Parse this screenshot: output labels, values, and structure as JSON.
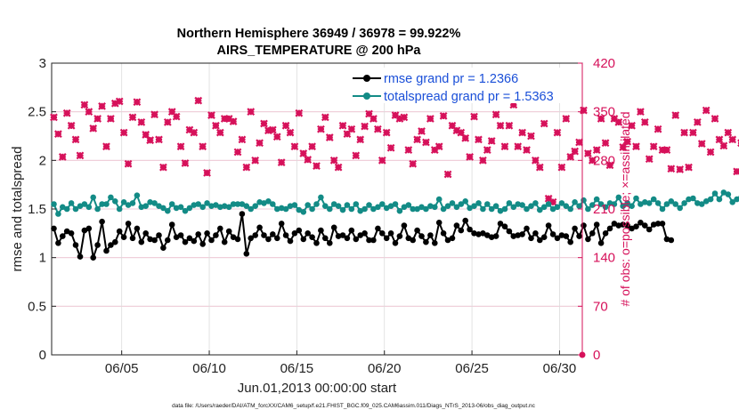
{
  "title_line1": "Northern Hemisphere 36949 / 36978 = 99.922%",
  "title_line2": "AIRS_TEMPERATURE @ 200 hPa",
  "footnote": "data file: /Users/raeder/DAI/ATM_forcXX/CAM6_setup/f.e21.FHIST_BGC.f09_025.CAM6assim.011/Diags_NTrS_2013-06/obs_diag_output.nc",
  "colors": {
    "rmse": "#000000",
    "spread": "#138b86",
    "obs": "#d6115a",
    "legend_text": "#1a4fd8"
  },
  "chart_data": {
    "type": "line",
    "title": "Northern Hemisphere 36949 / 36978 = 99.922% AIRS_TEMPERATURE @ 200 hPa",
    "xlabel": "Jun.01,2013 00:00:00 start",
    "ylabel": "rmse and totalspread",
    "y2label": "# of obs: o=possible; ×=assimilated",
    "xlim": [
      1.0,
      31.3
    ],
    "ylim": [
      0,
      3
    ],
    "y2lim": [
      0,
      420
    ],
    "x_ticks": [
      5,
      10,
      15,
      20,
      25,
      30
    ],
    "x_tick_labels": [
      "06/05",
      "06/10",
      "06/15",
      "06/20",
      "06/25",
      "06/30"
    ],
    "y_ticks": [
      0,
      0.5,
      1,
      1.5,
      2,
      2.5,
      3
    ],
    "y_tick_labels": [
      "0",
      "0.5",
      "1",
      "1.5",
      "2",
      "2.5",
      "3"
    ],
    "y2_ticks": [
      0,
      70,
      140,
      210,
      280,
      350,
      420
    ],
    "y2_tick_labels": [
      "0",
      "70",
      "140",
      "210",
      "280",
      "350",
      "420"
    ],
    "grid": true,
    "legend": {
      "placement": "top-right",
      "entries": [
        "rmse grand pr = 1.2366",
        "totalspread grand pr = 1.5363"
      ]
    },
    "x_start": 1.125,
    "x_step": 0.25,
    "series": [
      {
        "name": "rmse grand pr = 1.2366",
        "axis": "left",
        "marker": "circle",
        "values": [
          1.3,
          1.15,
          1.22,
          1.27,
          1.25,
          1.13,
          1.01,
          1.28,
          1.3,
          1.0,
          1.13,
          1.37,
          1.07,
          1.13,
          1.16,
          1.27,
          1.21,
          1.35,
          1.2,
          1.3,
          1.16,
          1.25,
          1.19,
          1.18,
          1.23,
          1.1,
          1.18,
          1.34,
          1.21,
          1.23,
          1.16,
          1.2,
          1.17,
          1.24,
          1.14,
          1.25,
          1.18,
          1.23,
          1.3,
          1.16,
          1.27,
          1.21,
          1.19,
          1.45,
          1.04,
          1.2,
          1.23,
          1.31,
          1.23,
          1.19,
          1.24,
          1.2,
          1.35,
          1.23,
          1.17,
          1.25,
          1.28,
          1.19,
          1.25,
          1.21,
          1.15,
          1.28,
          1.2,
          1.15,
          1.31,
          1.22,
          1.23,
          1.2,
          1.28,
          1.19,
          1.23,
          1.25,
          1.18,
          1.18,
          1.3,
          1.25,
          1.2,
          1.25,
          1.15,
          1.22,
          1.33,
          1.2,
          1.18,
          1.28,
          1.22,
          1.16,
          1.23,
          1.15,
          1.36,
          1.25,
          1.18,
          1.2,
          1.33,
          1.28,
          1.38,
          1.29,
          1.25,
          1.24,
          1.25,
          1.23,
          1.21,
          1.22,
          1.35,
          1.32,
          1.27,
          1.22,
          1.23,
          1.24,
          1.3,
          1.2,
          1.25,
          1.18,
          1.21,
          1.33,
          1.24,
          1.2,
          1.23,
          1.22,
          1.16,
          1.3,
          1.22,
          1.33,
          1.19,
          1.25,
          1.34,
          1.15,
          1.25,
          1.3,
          1.35,
          1.33,
          1.34,
          1.33,
          1.3,
          1.32,
          1.36,
          1.33,
          1.29,
          1.34,
          1.35,
          1.35,
          1.19,
          1.18
        ]
      },
      {
        "name": "totalspread grand pr = 1.5363",
        "axis": "left",
        "marker": "circle",
        "values": [
          1.55,
          1.45,
          1.52,
          1.5,
          1.56,
          1.5,
          1.53,
          1.55,
          1.52,
          1.62,
          1.5,
          1.55,
          1.55,
          1.62,
          1.58,
          1.5,
          1.57,
          1.54,
          1.56,
          1.64,
          1.52,
          1.53,
          1.57,
          1.56,
          1.53,
          1.51,
          1.48,
          1.55,
          1.51,
          1.52,
          1.48,
          1.51,
          1.54,
          1.55,
          1.52,
          1.56,
          1.53,
          1.54,
          1.52,
          1.53,
          1.52,
          1.55,
          1.55,
          1.55,
          1.53,
          1.5,
          1.53,
          1.57,
          1.56,
          1.58,
          1.55,
          1.5,
          1.51,
          1.5,
          1.53,
          1.54,
          1.49,
          1.47,
          1.54,
          1.5,
          1.55,
          1.62,
          1.53,
          1.5,
          1.55,
          1.53,
          1.49,
          1.54,
          1.5,
          1.55,
          1.48,
          1.5,
          1.54,
          1.5,
          1.52,
          1.55,
          1.51,
          1.53,
          1.55,
          1.48,
          1.52,
          1.54,
          1.5,
          1.5,
          1.52,
          1.5,
          1.53,
          1.52,
          1.6,
          1.5,
          1.53,
          1.56,
          1.52,
          1.55,
          1.58,
          1.51,
          1.53,
          1.56,
          1.5,
          1.55,
          1.5,
          1.53,
          1.48,
          1.5,
          1.56,
          1.52,
          1.55,
          1.54,
          1.5,
          1.53,
          1.56,
          1.49,
          1.52,
          1.55,
          1.5,
          1.52,
          1.56,
          1.53,
          1.5,
          1.57,
          1.53,
          1.59,
          1.5,
          1.54,
          1.6,
          1.55,
          1.52,
          1.56,
          1.55,
          1.62,
          1.53,
          1.56,
          1.53,
          1.61,
          1.55,
          1.57,
          1.56,
          1.6,
          1.56,
          1.5,
          1.55,
          1.58,
          1.55,
          1.51,
          1.56,
          1.6,
          1.61,
          1.56,
          1.55,
          1.58,
          1.6,
          1.66,
          1.6,
          1.67,
          1.65,
          1.57,
          1.6,
          1.62
        ]
      },
      {
        "name": "obs possible / assimilated",
        "axis": "right",
        "marker": "cross",
        "values": [
          342,
          318,
          285,
          348,
          330,
          310,
          287,
          360,
          350,
          326,
          340,
          358,
          300,
          340,
          362,
          365,
          320,
          275,
          342,
          364,
          335,
          317,
          309,
          346,
          310,
          270,
          335,
          350,
          343,
          300,
          276,
          324,
          320,
          366,
          300,
          262,
          345,
          330,
          320,
          340,
          340,
          336,
          292,
          310,
          270,
          350,
          280,
          305,
          333,
          323,
          324,
          314,
          277,
          330,
          320,
          300,
          348,
          290,
          281,
          300,
          272,
          325,
          342,
          313,
          280,
          270,
          330,
          318,
          325,
          287,
          310,
          329,
          347,
          340,
          325,
          280,
          320,
          298,
          345,
          340,
          342,
          295,
          275,
          310,
          322,
          306,
          340,
          295,
          300,
          344,
          260,
          330,
          323,
          320,
          312,
          285,
          343,
          310,
          280,
          295,
          308,
          346,
          330,
          300,
          330,
          360,
          300,
          320,
          295,
          315,
          280,
          270,
          333,
          225,
          220,
          320,
          270,
          340,
          285,
          293,
          306,
          352,
          290,
          280,
          295,
          340,
          305,
          273,
          340,
          335,
          299,
          307,
          330,
          300,
          350,
          335,
          282,
          300,
          325,
          295,
          295,
          268,
          345,
          267,
          320,
          270,
          320,
          335,
          304,
          352,
          292,
          340,
          310,
          301,
          320,
          310,
          264,
          305,
          303,
          310,
          312,
          320,
          260,
          345,
          335,
          350,
          360,
          316,
          285
        ]
      }
    ]
  }
}
